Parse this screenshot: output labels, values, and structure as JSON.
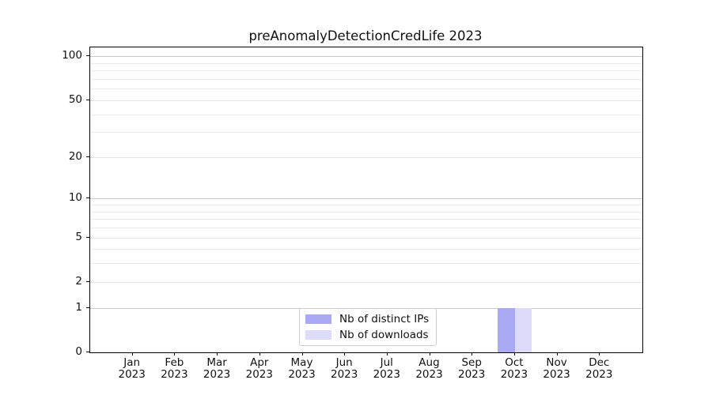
{
  "chart_data": {
    "type": "bar",
    "title": "preAnomalyDetectionCredLife 2023",
    "categories": [
      "Jan 2023",
      "Feb 2023",
      "Mar 2023",
      "Apr 2023",
      "May 2023",
      "Jun 2023",
      "Jul 2023",
      "Aug 2023",
      "Sep 2023",
      "Oct 2023",
      "Nov 2023",
      "Dec 2023"
    ],
    "series": [
      {
        "name": "Nb of distinct IPs",
        "color": "#a9a9f4",
        "values": [
          0,
          0,
          0,
          0,
          0,
          0,
          0,
          0,
          0,
          1,
          0,
          0
        ]
      },
      {
        "name": "Nb of downloads",
        "color": "#dcdcfa",
        "values": [
          0,
          0,
          0,
          0,
          0,
          0,
          0,
          0,
          0,
          1,
          0,
          0
        ]
      }
    ],
    "xlabel": "",
    "ylabel": "",
    "y_scale": "log1p",
    "ylim": [
      0,
      115
    ],
    "y_ticks": [
      0,
      1,
      2,
      5,
      10,
      20,
      50,
      100
    ],
    "y_major_gridlines": [
      1,
      10,
      100
    ],
    "y_minor_gridlines": [
      3,
      4,
      6,
      7,
      8,
      9,
      30,
      40,
      60,
      70,
      80,
      90
    ],
    "grid": "on",
    "legend_position": "lower center"
  },
  "colors": {
    "grid_major": "#c9c9c9",
    "grid_minor": "#ebebeb",
    "axis": "#000000",
    "background": "#ffffff"
  }
}
